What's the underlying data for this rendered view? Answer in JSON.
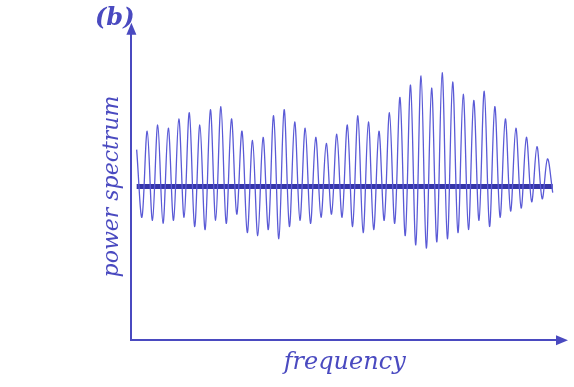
{
  "chart_data": {
    "type": "line",
    "title": "(b)",
    "x_label": "frequency",
    "y_label": "power spectrum",
    "x": [
      1,
      2,
      3,
      4,
      5,
      6,
      7,
      8,
      9,
      10,
      11,
      12,
      13,
      14,
      15,
      16,
      17,
      18,
      19,
      20,
      21,
      22,
      23,
      24,
      25,
      26,
      27,
      28,
      29,
      30,
      31,
      32,
      33,
      34,
      35,
      36,
      37,
      38,
      39,
      40,
      41,
      42,
      43,
      44,
      45,
      46,
      47,
      48,
      49,
      50,
      51,
      52,
      53,
      54,
      55,
      56,
      57,
      58,
      59,
      60,
      61,
      62,
      63,
      64,
      65,
      66,
      67,
      68,
      69,
      70,
      71,
      72,
      73,
      74,
      75,
      76,
      77,
      78,
      79,
      80
    ],
    "xlim": [
      0,
      81
    ],
    "ylim": [
      0,
      10
    ],
    "tick_labels": false,
    "grid": false,
    "series": [
      {
        "color": "#5a5ad6",
        "line_style": "solid",
        "marker": "none",
        "values": [
          6.2,
          4.0,
          6.8,
          3.9,
          7.0,
          3.8,
          6.9,
          3.9,
          7.2,
          4.0,
          7.4,
          3.7,
          7.0,
          3.6,
          7.5,
          3.9,
          7.6,
          3.8,
          7.2,
          4.1,
          6.8,
          3.5,
          6.5,
          3.4,
          6.6,
          3.6,
          7.3,
          3.3,
          7.5,
          3.7,
          7.1,
          3.9,
          6.9,
          3.8,
          6.6,
          4.0,
          6.4,
          4.1,
          6.7,
          4.0,
          7.0,
          3.7,
          7.3,
          3.5,
          7.1,
          3.6,
          6.8,
          3.9,
          7.4,
          3.8,
          7.9,
          3.4,
          8.3,
          3.1,
          8.6,
          3.0,
          8.2,
          3.2,
          8.7,
          3.3,
          8.4,
          3.5,
          8.0,
          3.6,
          7.8,
          3.9,
          8.1,
          3.7,
          7.6,
          4.0,
          7.2,
          4.2,
          6.9,
          4.3,
          6.6,
          4.5,
          6.3,
          4.6,
          5.9,
          4.8
        ]
      },
      {
        "color": "#3535a8",
        "line_style": "bold",
        "marker": "none",
        "values": [
          5,
          5,
          5,
          5,
          5,
          5,
          5,
          5,
          5,
          5,
          5,
          5,
          5,
          5,
          5,
          5,
          5,
          5,
          5,
          5,
          5,
          5,
          5,
          5,
          5,
          5,
          5,
          5,
          5,
          5,
          5,
          5,
          5,
          5,
          5,
          5,
          5,
          5,
          5,
          5,
          5,
          5,
          5,
          5,
          5,
          5,
          5,
          5,
          5,
          5,
          5,
          5,
          5,
          5,
          5,
          5,
          5,
          5,
          5,
          5,
          5,
          5,
          5,
          5,
          5,
          5,
          5,
          5,
          5,
          5,
          5,
          5,
          5,
          5,
          5,
          5,
          5,
          5,
          5,
          5
        ]
      }
    ]
  }
}
